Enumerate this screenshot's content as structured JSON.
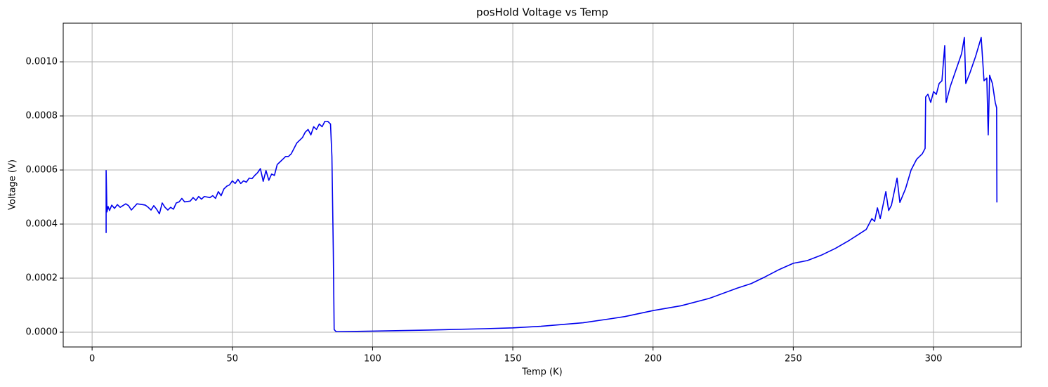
{
  "chart_data": {
    "type": "line",
    "title": "posHold Voltage vs Temp",
    "x_label": "Temp (K)",
    "y_label": "Voltage (V)",
    "x": [
      5,
      5,
      5.3,
      5.7,
      6.2,
      7,
      8,
      9,
      10,
      12,
      13,
      14,
      16,
      18,
      19,
      20,
      21,
      22,
      23,
      24,
      25,
      26,
      27,
      28,
      29,
      30,
      31,
      32,
      33,
      35,
      36,
      37,
      38,
      39,
      40,
      42,
      43,
      44,
      45,
      46,
      47,
      48,
      49,
      50,
      51,
      52,
      53,
      54,
      55,
      56,
      57,
      58,
      59,
      60,
      61,
      62,
      63,
      64,
      65,
      66,
      67,
      68,
      69,
      70,
      71,
      72,
      73,
      74,
      75,
      76,
      77,
      78,
      79,
      80,
      81,
      82,
      83,
      84,
      85,
      85.5,
      86,
      86.3,
      87,
      100,
      120,
      140,
      150,
      160,
      175,
      185,
      190,
      200,
      210,
      220,
      230,
      235,
      240,
      245,
      250,
      255,
      260,
      265,
      270,
      273,
      276,
      278,
      279,
      280,
      281,
      282,
      283,
      284,
      285,
      287,
      288,
      290,
      292,
      294,
      296,
      297,
      297.2,
      298,
      299,
      300,
      301,
      302,
      303,
      304,
      304.5,
      306,
      308,
      310,
      311,
      311.5,
      313,
      315,
      317,
      318,
      319,
      319.5,
      320,
      321,
      322,
      322.5,
      322.6
    ],
    "values": [
      0.000367,
      0.000598,
      0.000445,
      0.000465,
      0.00045,
      0.00047,
      0.000458,
      0.000472,
      0.000462,
      0.000475,
      0.000468,
      0.000452,
      0.000475,
      0.000472,
      0.00047,
      0.000462,
      0.000452,
      0.000468,
      0.000455,
      0.000438,
      0.000478,
      0.000462,
      0.000452,
      0.000462,
      0.000455,
      0.000478,
      0.000482,
      0.000495,
      0.000482,
      0.000485,
      0.000498,
      0.000488,
      0.000502,
      0.000492,
      0.000502,
      0.000498,
      0.000505,
      0.000495,
      0.00052,
      0.000505,
      0.00053,
      0.00054,
      0.000545,
      0.00056,
      0.00055,
      0.000565,
      0.00055,
      0.00056,
      0.000555,
      0.00057,
      0.000568,
      0.00058,
      0.00059,
      0.000605,
      0.000558,
      0.000598,
      0.000562,
      0.000585,
      0.00058,
      0.00062,
      0.00063,
      0.00064,
      0.00065,
      0.00065,
      0.00066,
      0.00068,
      0.0007,
      0.00071,
      0.00072,
      0.00074,
      0.00075,
      0.00073,
      0.00076,
      0.00075,
      0.00077,
      0.00076,
      0.00078,
      0.00078,
      0.00077,
      0.00065,
      0.0003,
      1e-05,
      2e-06,
      4e-06,
      8e-06,
      1.3e-05,
      1.6e-05,
      2.2e-05,
      3.5e-05,
      5e-05,
      5.8e-05,
      8e-05,
      9.8e-05,
      0.000125,
      0.000163,
      0.00018,
      0.000205,
      0.000232,
      0.000255,
      0.000265,
      0.000285,
      0.00031,
      0.00034,
      0.00036,
      0.00038,
      0.00042,
      0.00041,
      0.00046,
      0.00042,
      0.00047,
      0.00052,
      0.00045,
      0.00047,
      0.00057,
      0.00048,
      0.00053,
      0.0006,
      0.00064,
      0.00066,
      0.00068,
      0.00087,
      0.00088,
      0.00085,
      0.00089,
      0.00088,
      0.00092,
      0.00093,
      0.00106,
      0.00085,
      0.00091,
      0.00097,
      0.00103,
      0.00109,
      0.00092,
      0.00096,
      0.00102,
      0.00109,
      0.00093,
      0.00094,
      0.00073,
      0.00095,
      0.00092,
      0.00085,
      0.00083,
      0.00048
    ],
    "color": "#0000ee",
    "xlim": [
      -10.3,
      331.3
    ],
    "xticks": [
      0,
      50,
      100,
      150,
      200,
      250,
      300
    ],
    "ylim": [
      -5.45e-05,
      0.001143
    ],
    "yticks": [
      {
        "value": 0,
        "label": "0.0000"
      },
      {
        "value": 0.0002,
        "label": "0.0002"
      },
      {
        "value": 0.0004,
        "label": "0.0004"
      },
      {
        "value": 0.0006,
        "label": "0.0006"
      },
      {
        "value": 0.0008,
        "label": "0.0008"
      },
      {
        "value": 0.001,
        "label": "0.0010"
      }
    ],
    "grid": true
  }
}
